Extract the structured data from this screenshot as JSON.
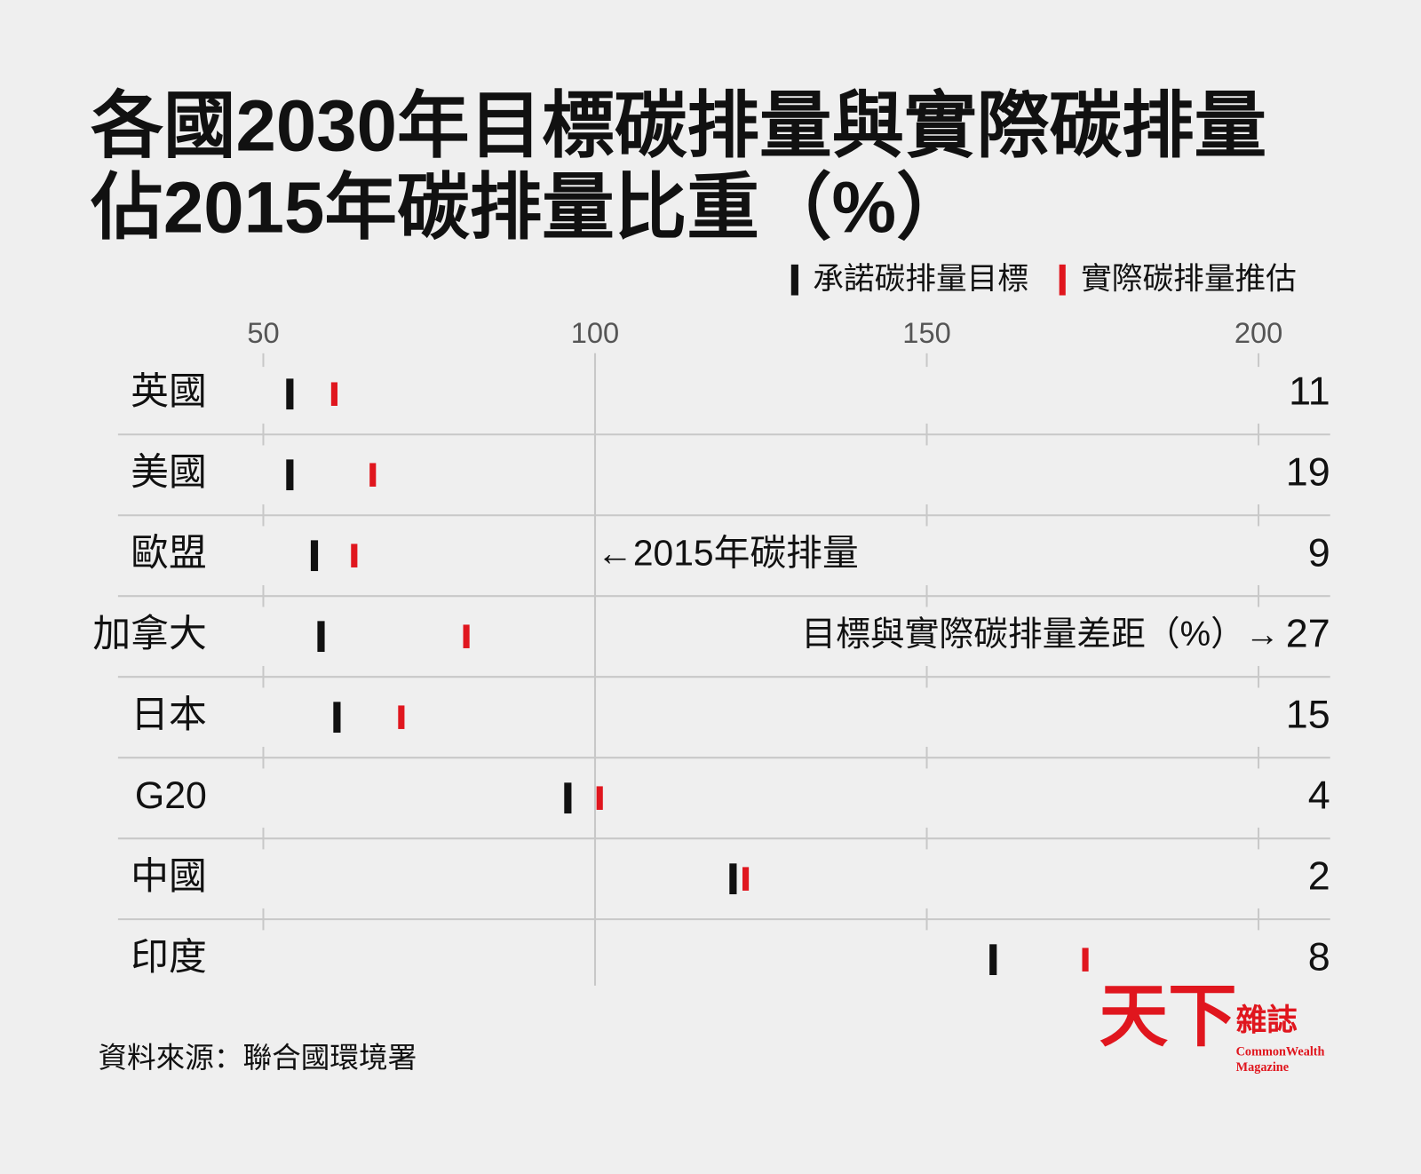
{
  "chart_data": {
    "type": "dot",
    "title_lines": [
      "各國2030年目標碳排量與實際碳排量",
      "佔2015年碳排量比重（%）"
    ],
    "categories": [
      "英國",
      "美國",
      "歐盟",
      "加拿大",
      "日本",
      "G20",
      "中國",
      "印度"
    ],
    "series": [
      {
        "name": "承諾碳排量目標",
        "color": "#111111",
        "values": [
          54,
          54,
          57.7,
          58.7,
          61.1,
          95.9,
          120.8,
          160
        ]
      },
      {
        "name": "實際碳排量推估",
        "color": "#e0161e",
        "values": [
          60.7,
          66.5,
          63.7,
          80.6,
          70.8,
          100.7,
          122.7,
          173.9
        ]
      }
    ],
    "gaps": [
      11,
      19,
      9,
      27,
      15,
      4,
      2,
      8
    ],
    "xlim": [
      28.1,
      210.8
    ],
    "xticks": [
      50,
      100,
      150,
      200
    ],
    "reference": 100,
    "annotations": [
      "←2015年碳排量",
      "目標與實際碳排量差距（%）→"
    ],
    "source": "資料來源：聯合國環境署"
  },
  "logo": {
    "main": "天下",
    "side": "雜誌",
    "en1": "CommonWealth",
    "en2": "Magazine"
  }
}
